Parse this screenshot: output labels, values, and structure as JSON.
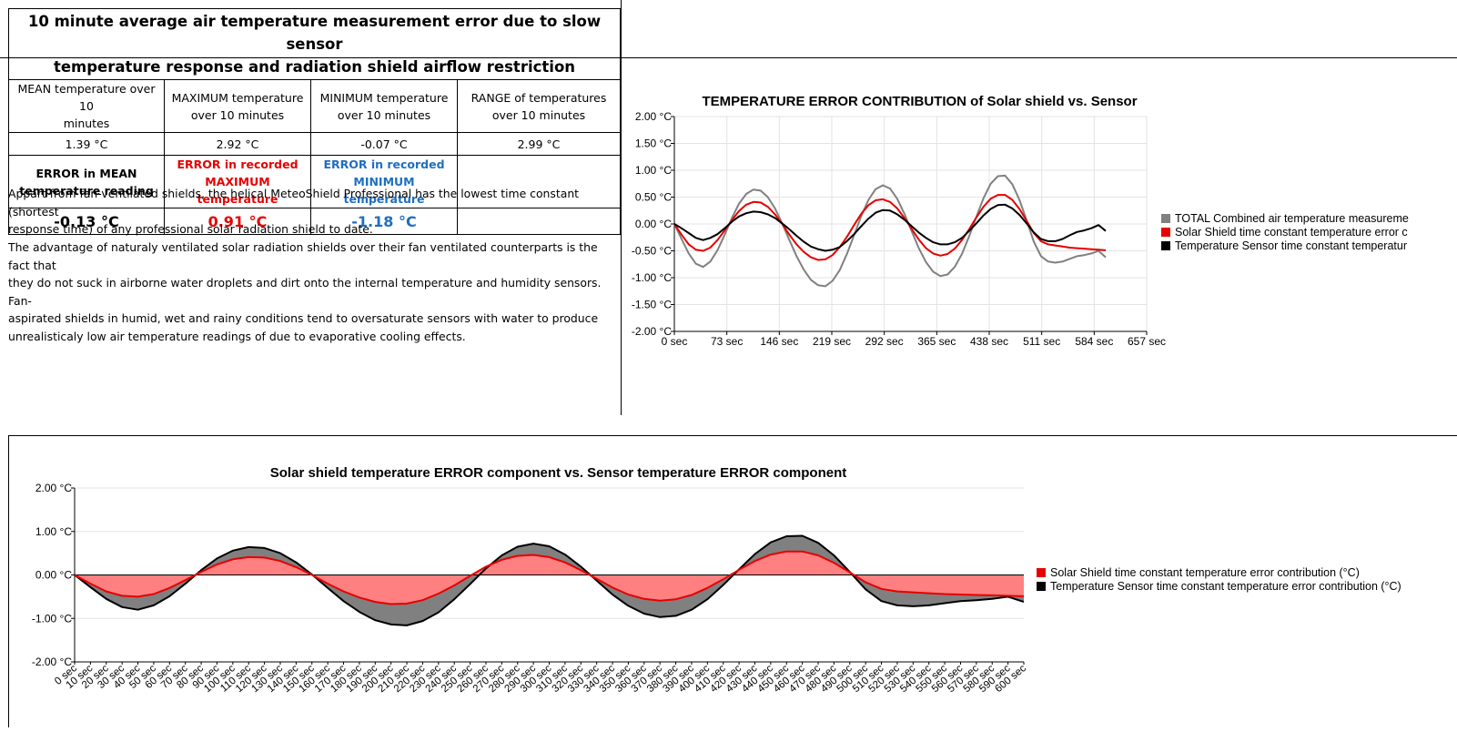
{
  "summary": {
    "title_line1": "10 minute average air temperature measurement error due to slow sensor",
    "title_line2": "temperature response and radiation shield airflow restriction",
    "headers": [
      [
        "MEAN temperature over 10",
        "minutes"
      ],
      [
        "MAXIMUM temperature",
        "over 10 minutes"
      ],
      [
        "MINIMUM temperature",
        "over 10 minutes"
      ],
      [
        "RANGE of temperatures",
        "over 10 minutes"
      ]
    ],
    "values": [
      "1.39 °C",
      "2.92 °C",
      "-0.07 °C",
      "2.99 °C"
    ],
    "error_labels": [
      [
        "ERROR in MEAN",
        "temperature reading"
      ],
      [
        "ERROR in recorded",
        "MAXIMUM temperature"
      ],
      [
        "ERROR in recorded",
        "MINIMUM temperature"
      ],
      [
        "",
        ""
      ]
    ],
    "error_values": [
      "-0.13 °C",
      "0.91 °C",
      "-1.18 °C",
      ""
    ],
    "note1_lines": [
      "Appart from fan-ventilated shields, the helical MeteoShield Professional has the lowest time constant (shortest",
      "response time) of any professional solar radiation shield to date."
    ],
    "note2_lines": [
      "The advantage of naturaly ventilated solar radiation shields over their fan ventilated counterparts is the fact that",
      "they do not suck in airborne water droplets and dirt onto the internal temperature and humidity sensors.  Fan-",
      "aspirated shields in humid, wet and rainy conditions tend to oversaturate sensors with water to produce",
      "unrealisticaly low air temperature readings of due to evaporative cooling effects."
    ]
  },
  "chart_data": [
    {
      "type": "line",
      "title": "TEMPERATURE ERROR CONTRIBUTION of Solar shield vs. Sensor",
      "xlim": [
        0,
        657
      ],
      "x_ticks": [
        "0 sec",
        "73 sec",
        "146 sec",
        "219 sec",
        "292 sec",
        "365 sec",
        "438 sec",
        "511 sec",
        "584 sec",
        "657 sec"
      ],
      "ylim": [
        -2,
        2
      ],
      "y_ticks": [
        "2.00 °C",
        "1.50 °C",
        "1.00 °C",
        "0.50 °C",
        "0.00 °C",
        "-0.50 °C",
        "-1.00 °C",
        "-1.50 °C",
        "-2.00 °C"
      ],
      "grid": true,
      "legend_position": "right",
      "x": [
        0,
        10,
        20,
        30,
        40,
        50,
        60,
        70,
        80,
        90,
        100,
        110,
        120,
        130,
        140,
        150,
        160,
        170,
        180,
        190,
        200,
        210,
        220,
        230,
        240,
        250,
        260,
        270,
        280,
        290,
        300,
        310,
        320,
        330,
        340,
        350,
        360,
        370,
        380,
        390,
        400,
        410,
        420,
        430,
        440,
        450,
        460,
        470,
        480,
        490,
        500,
        510,
        520,
        530,
        540,
        550,
        560,
        570,
        580,
        590,
        600
      ],
      "series": [
        {
          "name": "TOTAL Combined air temperature measureme",
          "color": "#808080",
          "values": [
            0,
            -0.28,
            -0.55,
            -0.74,
            -0.8,
            -0.7,
            -0.49,
            -0.2,
            0.11,
            0.38,
            0.56,
            0.64,
            0.62,
            0.5,
            0.29,
            0.01,
            -0.3,
            -0.6,
            -0.85,
            -1.04,
            -1.14,
            -1.16,
            -1.06,
            -0.86,
            -0.56,
            -0.21,
            0.15,
            0.45,
            0.65,
            0.72,
            0.66,
            0.47,
            0.19,
            -0.13,
            -0.45,
            -0.71,
            -0.89,
            -0.97,
            -0.94,
            -0.8,
            -0.56,
            -0.23,
            0.13,
            0.48,
            0.75,
            0.89,
            0.9,
            0.74,
            0.45,
            0.07,
            -0.33,
            -0.6,
            -0.7,
            -0.72,
            -0.7,
            -0.65,
            -0.6,
            -0.58,
            -0.55,
            -0.5,
            -0.62
          ]
        },
        {
          "name": "Solar Shield time constant temperature error c",
          "color": "#e60000",
          "values": [
            0,
            -0.2,
            -0.38,
            -0.48,
            -0.5,
            -0.44,
            -0.3,
            -0.12,
            0.07,
            0.24,
            0.36,
            0.41,
            0.4,
            0.32,
            0.18,
            0.0,
            -0.2,
            -0.38,
            -0.52,
            -0.62,
            -0.67,
            -0.66,
            -0.58,
            -0.43,
            -0.24,
            -0.02,
            0.19,
            0.35,
            0.44,
            0.46,
            0.41,
            0.29,
            0.11,
            -0.09,
            -0.29,
            -0.45,
            -0.55,
            -0.59,
            -0.56,
            -0.46,
            -0.3,
            -0.1,
            0.12,
            0.32,
            0.47,
            0.54,
            0.54,
            0.45,
            0.28,
            0.06,
            -0.17,
            -0.32,
            -0.38,
            -0.4,
            -0.42,
            -0.44,
            -0.45,
            -0.46,
            -0.47,
            -0.48,
            -0.49
          ]
        },
        {
          "name": "Temperature Sensor time constant temperatur",
          "color": "#000000",
          "values": [
            0,
            -0.08,
            -0.17,
            -0.26,
            -0.3,
            -0.26,
            -0.19,
            -0.08,
            0.04,
            0.14,
            0.2,
            0.23,
            0.22,
            0.18,
            0.11,
            0.01,
            -0.1,
            -0.22,
            -0.33,
            -0.42,
            -0.47,
            -0.5,
            -0.48,
            -0.43,
            -0.32,
            -0.19,
            -0.04,
            0.1,
            0.21,
            0.26,
            0.25,
            0.18,
            0.08,
            -0.04,
            -0.16,
            -0.26,
            -0.34,
            -0.38,
            -0.38,
            -0.34,
            -0.26,
            -0.13,
            0.01,
            0.16,
            0.28,
            0.35,
            0.36,
            0.29,
            0.17,
            0.01,
            -0.16,
            -0.28,
            -0.32,
            -0.32,
            -0.28,
            -0.21,
            -0.15,
            -0.12,
            -0.08,
            -0.02,
            -0.13
          ]
        }
      ]
    },
    {
      "type": "area",
      "title": "Solar shield temperature ERROR component   vs.   Sensor temperature ERROR component",
      "xlim": [
        0,
        600
      ],
      "x_ticks": [
        "0 sec",
        "10 sec",
        "20 sec",
        "30 sec",
        "40 sec",
        "50 sec",
        "60 sec",
        "70 sec",
        "80 sec",
        "90 sec",
        "100 sec",
        "110 sec",
        "120 sec",
        "130 sec",
        "140 sec",
        "150 sec",
        "160 sec",
        "170 sec",
        "180 sec",
        "190 sec",
        "200 sec",
        "210 sec",
        "220 sec",
        "230 sec",
        "240 sec",
        "250 sec",
        "260 sec",
        "270 sec",
        "280 sec",
        "290 sec",
        "300 sec",
        "310 sec",
        "320 sec",
        "330 sec",
        "340 sec",
        "350 sec",
        "360 sec",
        "370 sec",
        "380 sec",
        "390 sec",
        "400 sec",
        "410 sec",
        "420 sec",
        "430 sec",
        "440 sec",
        "450 sec",
        "460 sec",
        "470 sec",
        "480 sec",
        "490 sec",
        "500 sec",
        "510 sec",
        "520 sec",
        "530 sec",
        "540 sec",
        "550 sec",
        "560 sec",
        "570 sec",
        "580 sec",
        "590 sec",
        "600 sec"
      ],
      "ylim": [
        -2,
        2
      ],
      "y_ticks": [
        "2.00 °C",
        "1.00 °C",
        "0.00 °C",
        "-1.00 °C",
        "-2.00 °C"
      ],
      "grid": true,
      "legend_position": "right",
      "x": [
        0,
        10,
        20,
        30,
        40,
        50,
        60,
        70,
        80,
        90,
        100,
        110,
        120,
        130,
        140,
        150,
        160,
        170,
        180,
        190,
        200,
        210,
        220,
        230,
        240,
        250,
        260,
        270,
        280,
        290,
        300,
        310,
        320,
        330,
        340,
        350,
        360,
        370,
        380,
        390,
        400,
        410,
        420,
        430,
        440,
        450,
        460,
        470,
        480,
        490,
        500,
        510,
        520,
        530,
        540,
        550,
        560,
        570,
        580,
        590,
        600
      ],
      "series": [
        {
          "name": "Solar Shield time constant temperature error contribution (°C)",
          "color": "#e60000",
          "fill": "#ff8080",
          "values": [
            0,
            -0.2,
            -0.38,
            -0.48,
            -0.5,
            -0.44,
            -0.3,
            -0.12,
            0.07,
            0.24,
            0.36,
            0.41,
            0.4,
            0.32,
            0.18,
            0.0,
            -0.2,
            -0.38,
            -0.52,
            -0.62,
            -0.67,
            -0.66,
            -0.58,
            -0.43,
            -0.24,
            -0.02,
            0.19,
            0.35,
            0.44,
            0.46,
            0.41,
            0.29,
            0.11,
            -0.09,
            -0.29,
            -0.45,
            -0.55,
            -0.59,
            -0.56,
            -0.46,
            -0.3,
            -0.1,
            0.12,
            0.32,
            0.47,
            0.54,
            0.54,
            0.45,
            0.28,
            0.06,
            -0.17,
            -0.32,
            -0.38,
            -0.4,
            -0.42,
            -0.44,
            -0.45,
            -0.46,
            -0.47,
            -0.48,
            -0.49
          ]
        },
        {
          "name": "Temperature Sensor time constant temperature error contribution (°C)",
          "color": "#000000",
          "fill": "#808080",
          "values": [
            0,
            -0.28,
            -0.55,
            -0.74,
            -0.8,
            -0.7,
            -0.49,
            -0.2,
            0.11,
            0.38,
            0.56,
            0.64,
            0.62,
            0.5,
            0.29,
            0.01,
            -0.3,
            -0.6,
            -0.85,
            -1.04,
            -1.14,
            -1.16,
            -1.06,
            -0.86,
            -0.56,
            -0.21,
            0.15,
            0.45,
            0.65,
            0.72,
            0.66,
            0.47,
            0.19,
            -0.13,
            -0.45,
            -0.71,
            -0.89,
            -0.97,
            -0.94,
            -0.8,
            -0.56,
            -0.23,
            0.13,
            0.48,
            0.75,
            0.89,
            0.9,
            0.74,
            0.45,
            0.07,
            -0.33,
            -0.6,
            -0.7,
            -0.72,
            -0.7,
            -0.65,
            -0.6,
            -0.58,
            -0.55,
            -0.5,
            -0.62
          ]
        }
      ]
    }
  ]
}
